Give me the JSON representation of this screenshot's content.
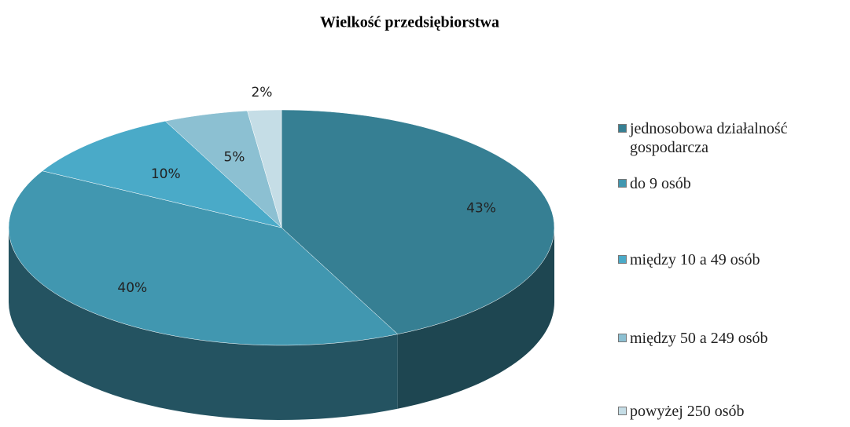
{
  "chart_data": {
    "type": "pie",
    "title": "Wielkość przedsiębiorstwa",
    "categories": [
      "jednosobowa działalność gospodarcza",
      "do 9 osób",
      "między 10 a 49 osób",
      "między 50 a 249 osób",
      "powyżej 250 osób"
    ],
    "values": [
      43,
      40,
      10,
      5,
      2
    ],
    "value_labels": [
      "43%",
      "40%",
      "10%",
      "5%",
      "2%"
    ],
    "colors": [
      "#367f93",
      "#4197b0",
      "#4aaac8",
      "#8cc0d2",
      "#c5dde6"
    ],
    "legend": "right"
  }
}
